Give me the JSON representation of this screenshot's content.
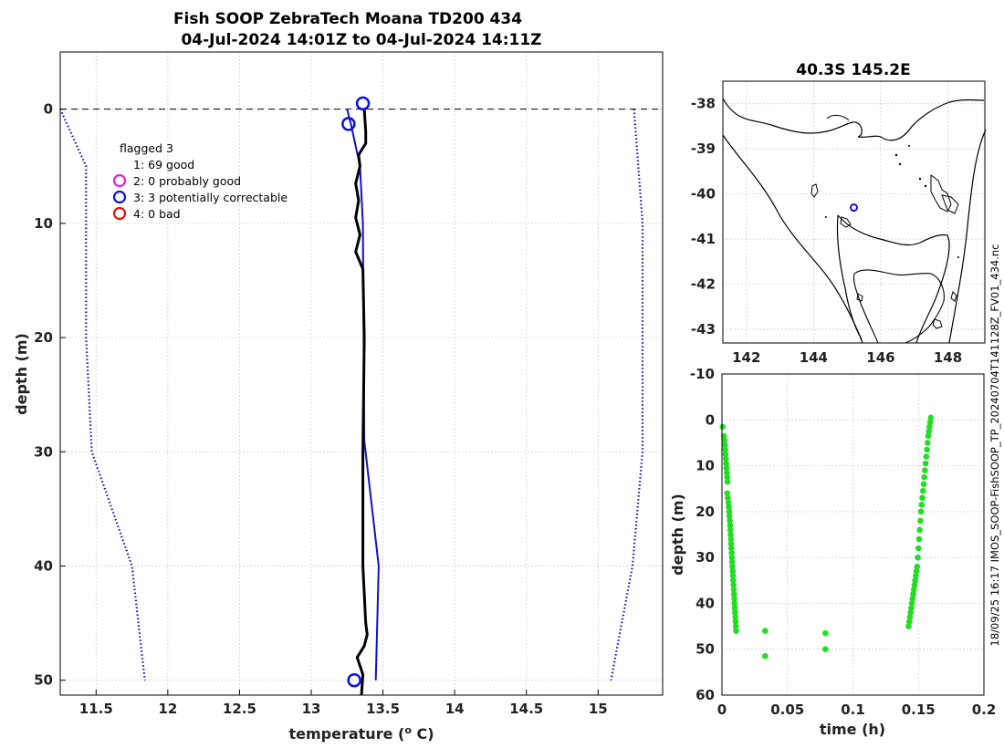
{
  "title_lines": [
    "Fish SOOP ZebraTech Moana TD200 434",
    "04-Jul-2024 14:01Z to 04-Jul-2024 14:11Z"
  ],
  "side_text": "18/09/25 16:17 IMOS_SOOP-FishSOOP_TP_20240704T141128Z_FV01_434.nc",
  "legend": {
    "title": "flagged 3",
    "items": [
      {
        "label": "1: 69 good",
        "color": "",
        "marker": "none"
      },
      {
        "label": "2: 0 probably good",
        "color": "#e020e0",
        "marker": "circle"
      },
      {
        "label": "3: 3 potentially correctable",
        "color": "#1010e0",
        "marker": "circle"
      },
      {
        "label": "4: 0 bad",
        "color": "#e01010",
        "marker": "circle"
      }
    ]
  },
  "chart_data": [
    {
      "type": "line",
      "xlabel": "temperature (° C)",
      "ylabel": "depth (m)",
      "xlim": [
        11.25,
        15.45
      ],
      "ylim": [
        51.3,
        -5.0
      ],
      "y_reversed": true,
      "xticks": [
        "11.5",
        "12",
        "12.5",
        "13",
        "13.5",
        "14",
        "14.5",
        "15"
      ],
      "yticks": [
        "0",
        "10",
        "20",
        "30",
        "40",
        "50"
      ],
      "grid": true,
      "reference_line": {
        "y": 0,
        "style": "dashed",
        "color": "#000000"
      },
      "series": [
        {
          "role": "lower-bound",
          "color": "#1010c0",
          "style": "dotted",
          "points": [
            [
              11.25,
              0
            ],
            [
              11.43,
              5
            ],
            [
              11.43,
              20
            ],
            [
              11.47,
              30
            ],
            [
              11.75,
              40
            ],
            [
              11.84,
              50
            ]
          ]
        },
        {
          "role": "upper-bound",
          "color": "#1010c0",
          "style": "dotted",
          "points": [
            [
              15.25,
              0
            ],
            [
              15.28,
              5
            ],
            [
              15.31,
              10
            ],
            [
              15.31,
              30
            ],
            [
              15.24,
              40
            ],
            [
              15.09,
              50
            ]
          ]
        },
        {
          "role": "reference-profile",
          "color": "#1010d0",
          "style": "solid",
          "points": [
            [
              13.25,
              0
            ],
            [
              13.28,
              1.5
            ],
            [
              13.34,
              5
            ],
            [
              13.36,
              10
            ],
            [
              13.37,
              29
            ],
            [
              13.47,
              40
            ],
            [
              13.45,
              50
            ]
          ]
        },
        {
          "role": "profile",
          "color": "#000000",
          "style": "solid",
          "points": [
            [
              13.37,
              0
            ],
            [
              13.38,
              2
            ],
            [
              13.38,
              3
            ],
            [
              13.33,
              4
            ],
            [
              13.34,
              5
            ],
            [
              13.31,
              6.5
            ],
            [
              13.33,
              8
            ],
            [
              13.31,
              9.5
            ],
            [
              13.34,
              11
            ],
            [
              13.31,
              12.5
            ],
            [
              13.36,
              14
            ],
            [
              13.37,
              20
            ],
            [
              13.36,
              30
            ],
            [
              13.36,
              40
            ],
            [
              13.38,
              45
            ],
            [
              13.39,
              46
            ],
            [
              13.37,
              47
            ],
            [
              13.32,
              48
            ],
            [
              13.36,
              49.5
            ],
            [
              13.35,
              51.3
            ]
          ]
        }
      ],
      "flagged_points": [
        {
          "flag": 3,
          "temperature": 13.36,
          "depth": -0.5
        },
        {
          "flag": 3,
          "temperature": 13.26,
          "depth": 1.3
        },
        {
          "flag": 3,
          "temperature": 13.3,
          "depth": 50.0
        }
      ]
    },
    {
      "type": "map",
      "title": "40.3S 145.2E",
      "xlim": [
        141.3,
        149.1
      ],
      "ylim": [
        -43.3,
        -37.5
      ],
      "xticks": [
        "142",
        "144",
        "146",
        "148"
      ],
      "yticks": [
        "-38",
        "-39",
        "-40",
        "-41",
        "-42",
        "-43"
      ],
      "grid": true,
      "marker": {
        "lon": 145.2,
        "lat": -40.3,
        "color": "#1010e0"
      }
    },
    {
      "type": "scatter",
      "xlabel": "time (h)",
      "ylabel": "depth (m)",
      "xlim": [
        0,
        0.2
      ],
      "ylim": [
        60,
        -10
      ],
      "y_reversed": true,
      "xticks": [
        "0",
        "0.05",
        "0.1",
        "0.15",
        "0.2"
      ],
      "yticks": [
        "-10",
        "0",
        "10",
        "20",
        "30",
        "40",
        "50",
        "60"
      ],
      "grid": true,
      "color": "#22dd22",
      "points": [
        [
          0.0005,
          1.5
        ],
        [
          0.0015,
          3.5
        ],
        [
          0.002,
          4.5
        ],
        [
          0.0022,
          5.5
        ],
        [
          0.0025,
          6.5
        ],
        [
          0.0027,
          7.5
        ],
        [
          0.003,
          8.5
        ],
        [
          0.0032,
          9.5
        ],
        [
          0.0035,
          10.5
        ],
        [
          0.0037,
          11.5
        ],
        [
          0.004,
          12.5
        ],
        [
          0.0042,
          13.5
        ],
        [
          0.004,
          16
        ],
        [
          0.0045,
          17
        ],
        [
          0.005,
          18
        ],
        [
          0.0052,
          19
        ],
        [
          0.0055,
          20
        ],
        [
          0.0057,
          21
        ],
        [
          0.006,
          22
        ],
        [
          0.0062,
          23
        ],
        [
          0.0064,
          24
        ],
        [
          0.0066,
          25
        ],
        [
          0.0068,
          26
        ],
        [
          0.007,
          27
        ],
        [
          0.0072,
          28
        ],
        [
          0.0074,
          29
        ],
        [
          0.0076,
          30
        ],
        [
          0.0078,
          31
        ],
        [
          0.008,
          32
        ],
        [
          0.0082,
          33
        ],
        [
          0.0084,
          34
        ],
        [
          0.0086,
          35
        ],
        [
          0.0088,
          36
        ],
        [
          0.009,
          37
        ],
        [
          0.0092,
          38
        ],
        [
          0.0094,
          39
        ],
        [
          0.0096,
          40
        ],
        [
          0.0098,
          41
        ],
        [
          0.01,
          42
        ],
        [
          0.0102,
          43
        ],
        [
          0.0104,
          44
        ],
        [
          0.0106,
          45
        ],
        [
          0.0108,
          46
        ],
        [
          0.033,
          46
        ],
        [
          0.033,
          51.5
        ],
        [
          0.079,
          46.5
        ],
        [
          0.079,
          50
        ],
        [
          0.1425,
          45
        ],
        [
          0.143,
          44
        ],
        [
          0.1435,
          43
        ],
        [
          0.144,
          42
        ],
        [
          0.1445,
          41
        ],
        [
          0.145,
          40
        ],
        [
          0.1455,
          39
        ],
        [
          0.146,
          38
        ],
        [
          0.1465,
          37
        ],
        [
          0.147,
          36
        ],
        [
          0.1475,
          35
        ],
        [
          0.148,
          34
        ],
        [
          0.1485,
          33
        ],
        [
          0.149,
          32
        ],
        [
          0.1495,
          30
        ],
        [
          0.15,
          28
        ],
        [
          0.1505,
          26
        ],
        [
          0.151,
          24
        ],
        [
          0.1515,
          22
        ],
        [
          0.152,
          20
        ],
        [
          0.1525,
          18.5
        ],
        [
          0.153,
          17
        ],
        [
          0.1535,
          15.5
        ],
        [
          0.154,
          14
        ],
        [
          0.1545,
          12.5
        ],
        [
          0.155,
          11
        ],
        [
          0.1555,
          9.5
        ],
        [
          0.156,
          8
        ],
        [
          0.1565,
          6.5
        ],
        [
          0.157,
          5
        ],
        [
          0.1575,
          3.5
        ],
        [
          0.158,
          2.5
        ],
        [
          0.1585,
          1.5
        ],
        [
          0.159,
          0.5
        ],
        [
          0.1595,
          -0.5
        ]
      ]
    }
  ]
}
